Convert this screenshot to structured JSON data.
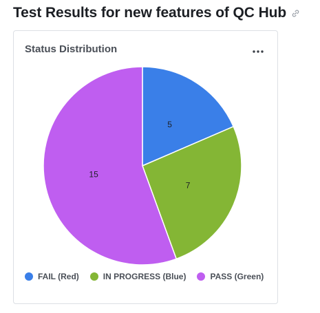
{
  "header": {
    "title": "Test Results for new features of QC Hub",
    "link_icon": "link-icon"
  },
  "card": {
    "title": "Status Distribution",
    "menu_icon": "more-horizontal-icon"
  },
  "chart_data": {
    "type": "pie",
    "title": "Status Distribution",
    "start_angle_deg": 0,
    "direction": "clockwise",
    "slices": [
      {
        "label": "FAIL (Red)",
        "value": 5,
        "color": "#3a7fe8"
      },
      {
        "label": "IN PROGRESS (Blue)",
        "value": 7,
        "color": "#84b635"
      },
      {
        "label": "PASS (Green)",
        "value": 15,
        "color": "#bf5ef0"
      }
    ],
    "legend_position": "bottom-left"
  },
  "legend": {
    "items": [
      {
        "label": "FAIL (Red)",
        "color": "#3a7fe8"
      },
      {
        "label": "IN PROGRESS (Blue)",
        "color": "#84b635"
      },
      {
        "label": "PASS (Green)",
        "color": "#bf5ef0"
      }
    ]
  }
}
